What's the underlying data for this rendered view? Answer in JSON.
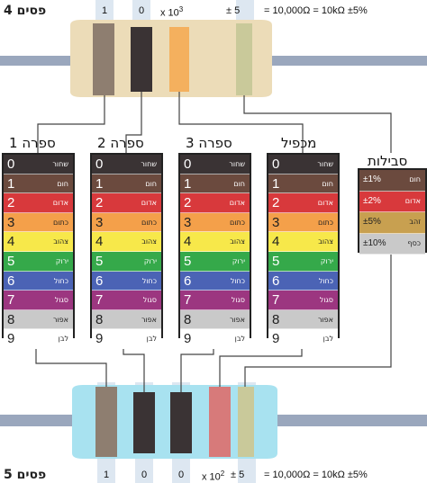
{
  "top_label": "4 פסים",
  "bottom_label": "5 פסים",
  "top_digits": [
    "1",
    "0"
  ],
  "top_mult": "x 10",
  "top_mult_exp": "3",
  "top_tol": "± 5",
  "top_equation": "= 10,000Ω  =  10kΩ  ±5%",
  "bottom_digits": [
    "1",
    "0",
    "0"
  ],
  "bottom_mult": "x 10",
  "bottom_mult_exp": "2",
  "bottom_tol": "± 5",
  "bottom_equation": "= 10,000Ω  =  10kΩ  ±5%",
  "columns": [
    {
      "title": "ספרה 1"
    },
    {
      "title": "ספרה 2"
    },
    {
      "title": "ספרה 3"
    },
    {
      "title": "מכפיל"
    }
  ],
  "tolerance_title": "סבילות",
  "color_rows": [
    {
      "digit": "0",
      "name": "שחור",
      "color": "#3a3334",
      "text": "#ffffff"
    },
    {
      "digit": "1",
      "name": "חום",
      "color": "#6b4a3e",
      "text": "#ffffff"
    },
    {
      "digit": "2",
      "name": "אדום",
      "color": "#d8393c",
      "text": "#ffffff"
    },
    {
      "digit": "3",
      "name": "כתום",
      "color": "#f4a04a",
      "text": "#222222"
    },
    {
      "digit": "4",
      "name": "צהוב",
      "color": "#f7e84a",
      "text": "#222222"
    },
    {
      "digit": "5",
      "name": "ירוק",
      "color": "#35a94a",
      "text": "#ffffff"
    },
    {
      "digit": "6",
      "name": "כחול",
      "color": "#4b63b5",
      "text": "#ffffff"
    },
    {
      "digit": "7",
      "name": "סגול",
      "color": "#9c3680",
      "text": "#ffffff"
    },
    {
      "digit": "8",
      "name": "אפור",
      "color": "#c9c9c9",
      "text": "#222222"
    },
    {
      "digit": "9",
      "name": "לבן",
      "color": "#ffffff",
      "text": "#222222"
    }
  ],
  "tolerance_rows": [
    {
      "value": "±1%",
      "name": "חום",
      "color": "#6b4a3e",
      "text": "#ffffff"
    },
    {
      "value": "±2%",
      "name": "אדום",
      "color": "#d8393c",
      "text": "#ffffff"
    },
    {
      "value": "±5%",
      "name": "זהב",
      "color": "#c8a050",
      "text": "#222222"
    },
    {
      "value": "±10%",
      "name": "כסף",
      "color": "#c9c9c9",
      "text": "#222222"
    }
  ],
  "colors": {
    "top_body": "#ecdcb8",
    "bottom_body": "#a8e2f0",
    "lead": "#9aa7bd",
    "band_highlight": "#dde7f1"
  }
}
